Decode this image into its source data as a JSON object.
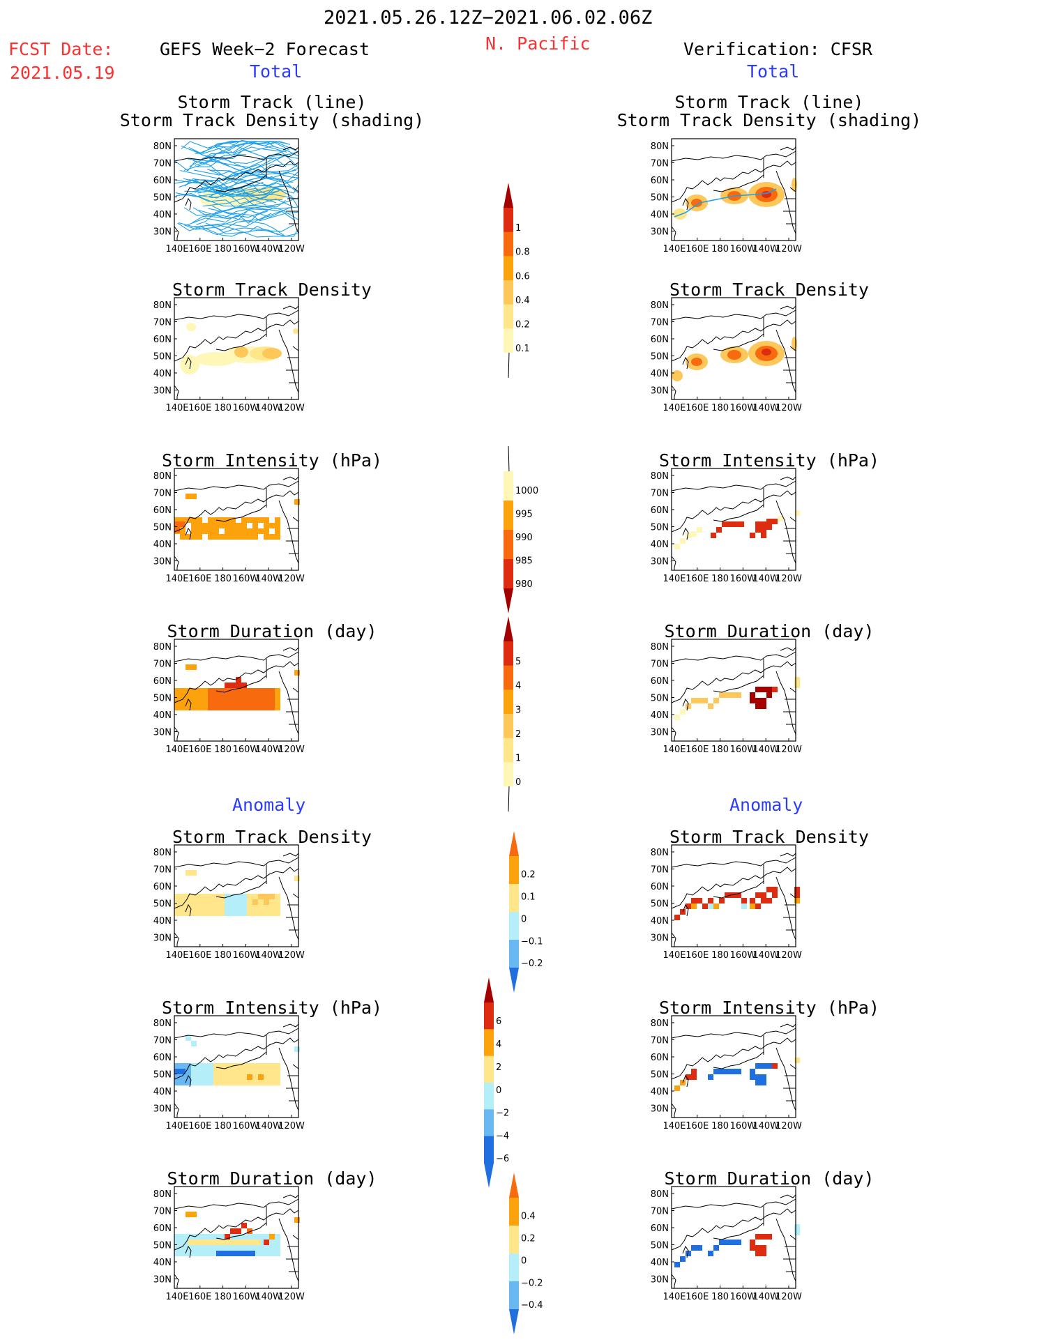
{
  "header": {
    "period": "2021.05.26.12Z−2021.06.02.06Z",
    "region": "N. Pacific",
    "fcst_label": "FCST Date:",
    "fcst_date": "2021.05.19",
    "left_title": "GEFS Week−2 Forecast",
    "right_title": "Verification: CFSR"
  },
  "sections": {
    "total": "Total",
    "anomaly": "Anomaly"
  },
  "panel_titles": {
    "track_l1": "Storm Track (line)",
    "track_l2": "Storm Track Density (shading)",
    "density": "Storm Track Density",
    "intensity": "Storm Intensity (hPa)",
    "duration": "Storm Duration (day)"
  },
  "axes": {
    "lat": [
      "80N",
      "70N",
      "60N",
      "50N",
      "40N",
      "30N"
    ],
    "lon": [
      "140E",
      "160E",
      "180",
      "160W",
      "140W",
      "120W"
    ]
  },
  "colorbars": {
    "density_total": [
      "1",
      "0.8",
      "0.6",
      "0.4",
      "0.2",
      "0.1"
    ],
    "intensity_total": [
      "1000",
      "995",
      "990",
      "985",
      "980"
    ],
    "duration_total": [
      "5",
      "4",
      "3",
      "2",
      "1",
      "0"
    ],
    "density_anom": [
      "0.2",
      "0.1",
      "0",
      "−0.1",
      "−0.2"
    ],
    "intensity_anom": [
      "6",
      "4",
      "2",
      "0",
      "−2",
      "−4",
      "−6"
    ],
    "duration_anom": [
      "0.4",
      "0.2",
      "0",
      "−0.2",
      "−0.4"
    ]
  },
  "colors": {
    "pale_yellow": "#fff7b8",
    "yellow": "#ffe68a",
    "light_orange": "#fdc75a",
    "orange": "#fba20c",
    "dark_orange": "#f86a0e",
    "red": "#dd2c0f",
    "dark_red": "#a40000",
    "light_blue": "#b4eef8",
    "mid_blue": "#6ab8f2",
    "blue": "#1f6fe0",
    "track_blue": "#1ea0e8"
  }
}
